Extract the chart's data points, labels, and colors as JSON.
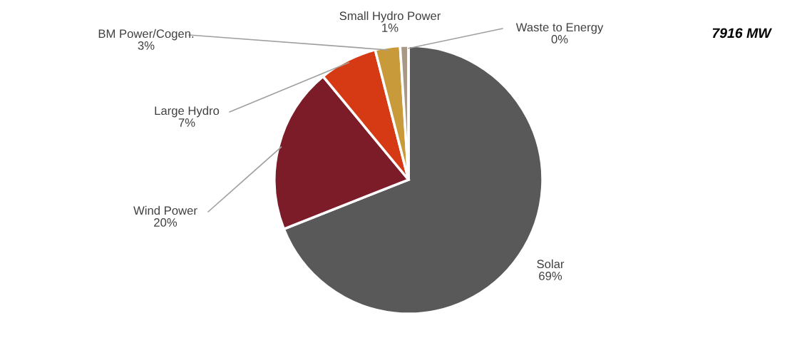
{
  "chart_data": {
    "type": "pie",
    "categories": [
      "Solar",
      "Wind Power",
      "Large Hydro",
      "BM Power/Cogen.",
      "Small Hydro Power",
      "Waste to Energy"
    ],
    "values": [
      69,
      20,
      7,
      3,
      1,
      0
    ],
    "colors": [
      "#595959",
      "#7b1c28",
      "#d53a14",
      "#c89a3a",
      "#a89886",
      "#c8c0b0"
    ],
    "value_labels": [
      "69%",
      "20%",
      "7%",
      "3%",
      "1%",
      "0%"
    ],
    "legend": false,
    "annotations": [
      "7916 MW"
    ]
  }
}
